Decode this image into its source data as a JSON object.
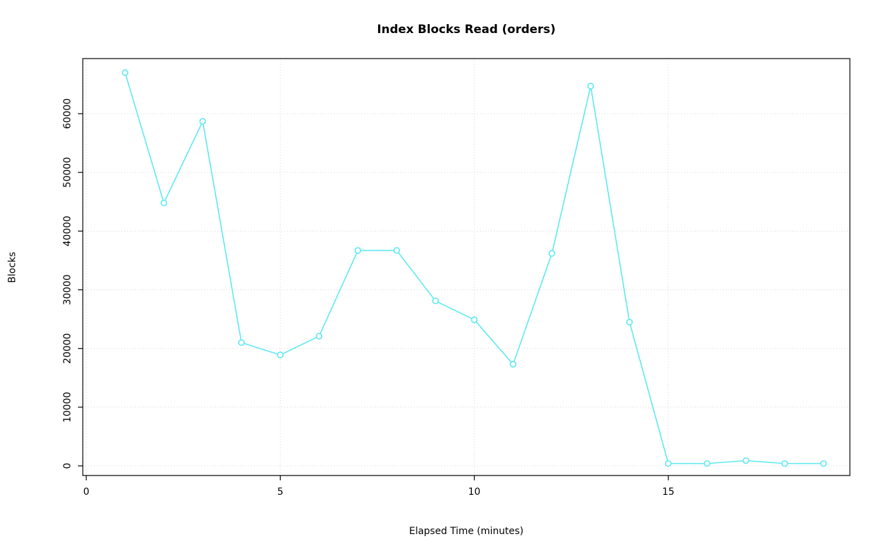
{
  "chart_data": {
    "type": "line",
    "title": "Index Blocks Read (orders)",
    "xlabel": "Elapsed Time (minutes)",
    "ylabel": "Blocks",
    "x": [
      1,
      2,
      3,
      4,
      5,
      6,
      7,
      8,
      9,
      10,
      11,
      12,
      13,
      14,
      15,
      16,
      17,
      18,
      19
    ],
    "y": [
      67000,
      44800,
      58700,
      21000,
      18900,
      22100,
      36700,
      36700,
      28100,
      24900,
      17300,
      36200,
      64700,
      24500,
      400,
      400,
      900,
      400,
      400
    ],
    "x_ticks": [
      0,
      5,
      10,
      15
    ],
    "y_ticks": [
      0,
      10000,
      20000,
      30000,
      40000,
      50000,
      60000
    ],
    "xlim": [
      -0.09,
      19.68
    ],
    "ylim": [
      -1640,
      69390
    ],
    "grid": true,
    "legend_position": "none",
    "line_color": "#5ce9f1",
    "marker": "open-circle",
    "grid_color": "#d4d4d4",
    "axis_color": "#000000",
    "background_color": "#ffffff"
  }
}
